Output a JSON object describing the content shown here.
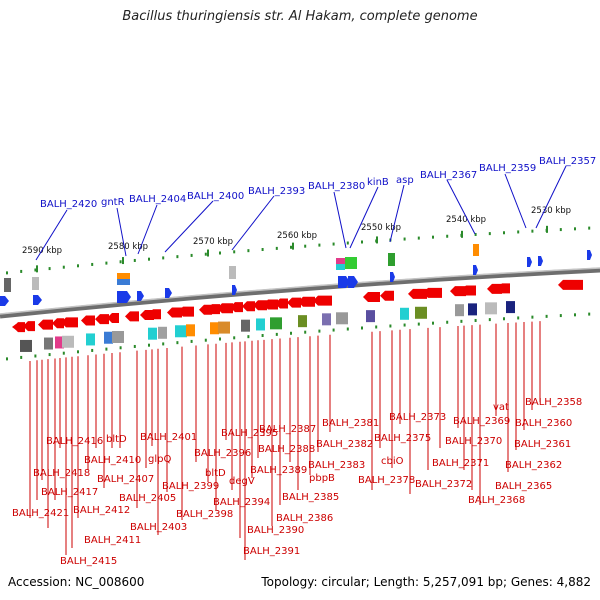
{
  "title": "Bacillus thuringiensis str. Al Hakam, complete genome",
  "footer": {
    "accession": "Accession: NC_008600",
    "summary": "Topology: circular; Length: 5,257,091 bp; Genes: 4,882"
  },
  "scale_labels": [
    "2590 kbp",
    "2580 kbp",
    "2570 kbp",
    "2560 kbp",
    "2550 kbp",
    "2540 kbp",
    "2530 kbp"
  ],
  "top_labels": [
    "BALH_2420",
    "gntR",
    "BALH_2404",
    "BALH_2400",
    "BALH_2393",
    "BALH_2380",
    "kinB",
    "asp",
    "BALH_2367",
    "BALH_2359",
    "BALH_2357"
  ],
  "bottom_labels": [
    "BALH_2416",
    "BALH_2418",
    "BALH_2417",
    "BALH_2421",
    "BALH_2412",
    "BALH_2411",
    "BALH_2415",
    "bltD",
    "BALH_2410",
    "BALH_2407",
    "BALH_2405",
    "BALH_2401",
    "glpQ",
    "BALH_2403",
    "BALH_2399",
    "BALH_2398",
    "BALH_2395",
    "BALH_2396",
    "bltD",
    "degV",
    "BALH_2394",
    "BALH_2390",
    "BALH_2391",
    "BALH_2387",
    "BALH_2388",
    "BALH_2389",
    "BALH_2385",
    "BALH_2386",
    "BALH_2381",
    "BALH_2382",
    "BALH_2383",
    "pbpB",
    "BALH_2373",
    "BALH_2375",
    "cbiO",
    "BALH_2378",
    "BALH_2369",
    "BALH_2370",
    "BALH_2371",
    "BALH_2372",
    "vat",
    "BALH_2358",
    "BALH_2360",
    "BALH_2361",
    "BALH_2362",
    "BALH_2365",
    "BALH_2368"
  ]
}
